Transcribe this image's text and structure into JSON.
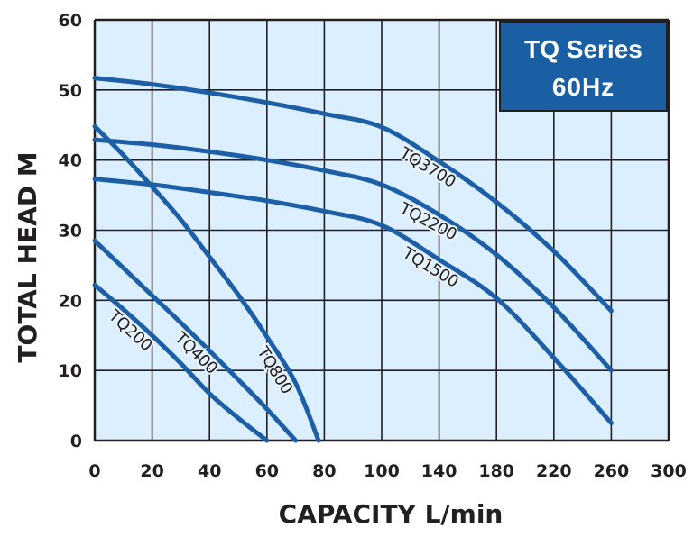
{
  "legend_box": {
    "line1": "TQ Series",
    "line2": "60Hz",
    "fill": "#1a5fa3"
  },
  "colors": {
    "plot_bg": "#dcefff",
    "grid": "#231f20",
    "curve": "#1d5fa6"
  },
  "chart_data": {
    "type": "line",
    "title": "",
    "xlabel": "CAPACITY L/min",
    "ylabel": "TOTAL HEAD M",
    "xlim": [
      0,
      300
    ],
    "ylim": [
      0,
      60
    ],
    "xticks": [
      0,
      20,
      40,
      60,
      80,
      100,
      140,
      180,
      220,
      260,
      300
    ],
    "yticks": [
      0,
      10,
      20,
      30,
      40,
      50,
      60
    ],
    "grid": true,
    "legend_placement": "top-right",
    "series": [
      {
        "name": "TQ200",
        "x": [
          0,
          10,
          20,
          30,
          40,
          50,
          60
        ],
        "y": [
          22.2,
          18.7,
          15,
          11,
          6.7,
          3.2,
          0
        ],
        "label_at_x": 15
      },
      {
        "name": "TQ400",
        "x": [
          0,
          10,
          20,
          30,
          40,
          50,
          60,
          70
        ],
        "y": [
          28.5,
          24.6,
          20.7,
          16.8,
          12.8,
          8.7,
          4.5,
          0
        ],
        "label_at_x": 38
      },
      {
        "name": "TQ800",
        "x": [
          0,
          10,
          20,
          30,
          40,
          50,
          60,
          70,
          78
        ],
        "y": [
          44.8,
          40.7,
          36.2,
          31.5,
          26.2,
          20.8,
          14.8,
          8.2,
          0
        ],
        "label_at_x": 66
      },
      {
        "name": "TQ1500",
        "x": [
          0,
          20,
          40,
          60,
          80,
          100,
          140,
          180,
          220,
          260
        ],
        "y": [
          37.3,
          36.5,
          35.4,
          34.2,
          32.7,
          30.7,
          25.8,
          20.3,
          11.8,
          2.5
        ],
        "label_at_x": 138
      },
      {
        "name": "TQ2200",
        "x": [
          0,
          20,
          40,
          60,
          80,
          100,
          140,
          180,
          220,
          260
        ],
        "y": [
          42.9,
          42.2,
          41.2,
          40,
          38.5,
          36.5,
          32.2,
          26.5,
          19,
          10
        ],
        "label_at_x": 136
      },
      {
        "name": "TQ3700",
        "x": [
          0,
          20,
          40,
          60,
          80,
          100,
          140,
          180,
          220,
          260
        ],
        "y": [
          51.7,
          50.8,
          49.6,
          48.2,
          46.6,
          44.7,
          39.8,
          34,
          27,
          18.5
        ],
        "label_at_x": 136
      }
    ]
  }
}
